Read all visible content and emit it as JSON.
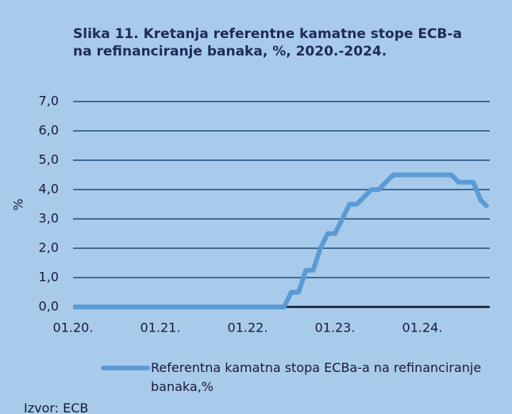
{
  "chart_data": {
    "type": "line",
    "title": "Slika 11. Kretanja referentne kamatne stope ECB-a na refinanciranje banaka, %, 2020.-2024.",
    "y_label": "%",
    "source": "Izvor: ECB",
    "categories": [
      "01.20.",
      null,
      null,
      null,
      null,
      null,
      null,
      null,
      null,
      null,
      null,
      null,
      "01.21.",
      null,
      null,
      null,
      null,
      null,
      null,
      null,
      null,
      null,
      null,
      null,
      "01.22.",
      null,
      null,
      null,
      null,
      null,
      null,
      null,
      null,
      null,
      null,
      null,
      "01.23.",
      null,
      null,
      null,
      null,
      null,
      null,
      null,
      null,
      null,
      null,
      null,
      "01.24.",
      null,
      null,
      null,
      null,
      null,
      null,
      null,
      null,
      null
    ],
    "series": [
      {
        "name": "Referentna kamatna stopa ECBa-a na refinanciranje banaka,%",
        "color": "#5b9bd5",
        "values": [
          0,
          0,
          0,
          0,
          0,
          0,
          0,
          0,
          0,
          0,
          0,
          0,
          0,
          0,
          0,
          0,
          0,
          0,
          0,
          0,
          0,
          0,
          0,
          0,
          0,
          0,
          0,
          0,
          0,
          0,
          0.5,
          0.5,
          1.25,
          1.25,
          2.0,
          2.5,
          2.5,
          3.0,
          3.5,
          3.5,
          3.75,
          4.0,
          4.0,
          4.25,
          4.5,
          4.5,
          4.5,
          4.5,
          4.5,
          4.5,
          4.5,
          4.5,
          4.5,
          4.25,
          4.25,
          4.25,
          3.65,
          3.4
        ]
      }
    ],
    "ylim": [
      0,
      7
    ],
    "yticks": [
      {
        "value": 0,
        "label": "0,0"
      },
      {
        "value": 1,
        "label": "1,0"
      },
      {
        "value": 2,
        "label": "2,0"
      },
      {
        "value": 3,
        "label": "3,0"
      },
      {
        "value": 4,
        "label": "4,0"
      },
      {
        "value": 5,
        "label": "5,0"
      },
      {
        "value": 6,
        "label": "6,0"
      },
      {
        "value": 7,
        "label": "7,0"
      }
    ],
    "grid": true,
    "grid_color": "#1f4e79",
    "legend": "bottom"
  }
}
